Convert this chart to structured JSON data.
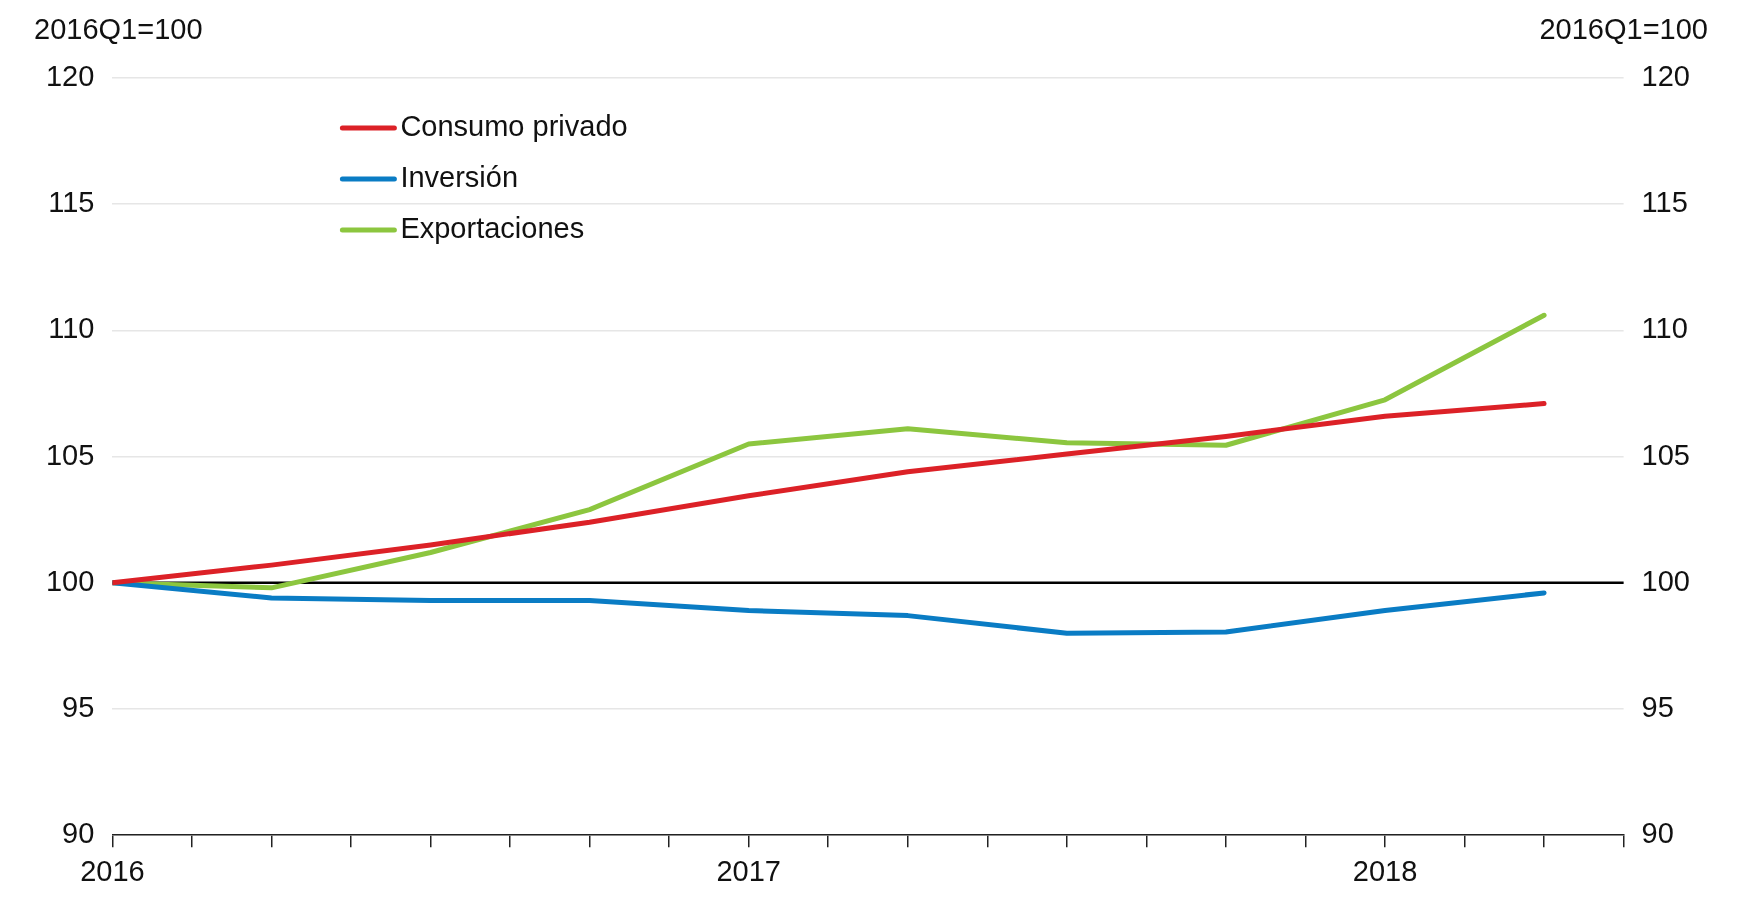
{
  "chart_data": {
    "type": "line",
    "ylabel": "2016Q1=100",
    "y2label": "2016Q1=100",
    "x": [
      2016,
      2016.25,
      2016.5,
      2016.75,
      2017,
      2017.25,
      2017.5,
      2017.75,
      2018,
      2018.25
    ],
    "series": [
      {
        "name": "Consumo privado",
        "color": "#dc2127",
        "values": [
          100,
          100.7,
          101.5,
          102.4,
          103.45,
          104.4,
          105.1,
          105.8,
          106.6,
          107.1
        ]
      },
      {
        "name": "Inversión",
        "color": "#0a7cc4",
        "values": [
          100,
          99.4,
          99.3,
          99.3,
          98.9,
          98.7,
          98.0,
          98.05,
          98.9,
          99.6
        ]
      },
      {
        "name": "Exportaciones",
        "color": "#8cc63f",
        "values": [
          100,
          99.8,
          101.2,
          102.9,
          105.5,
          106.1,
          105.55,
          105.45,
          107.25,
          110.6
        ]
      }
    ],
    "xlim": [
      2016,
      2018.375
    ],
    "xticks": [
      {
        "value": 2016,
        "label": "2016"
      },
      {
        "value": 2016.125,
        "label": null
      },
      {
        "value": 2016.25,
        "label": null
      },
      {
        "value": 2016.375,
        "label": null
      },
      {
        "value": 2016.5,
        "label": null
      },
      {
        "value": 2016.625,
        "label": null
      },
      {
        "value": 2016.75,
        "label": null
      },
      {
        "value": 2016.875,
        "label": null
      },
      {
        "value": 2017,
        "label": "2017"
      },
      {
        "value": 2017.125,
        "label": null
      },
      {
        "value": 2017.25,
        "label": null
      },
      {
        "value": 2017.375,
        "label": null
      },
      {
        "value": 2017.5,
        "label": null
      },
      {
        "value": 2017.625,
        "label": null
      },
      {
        "value": 2017.75,
        "label": null
      },
      {
        "value": 2017.875,
        "label": null
      },
      {
        "value": 2018,
        "label": "2018"
      },
      {
        "value": 2018.125,
        "label": null
      },
      {
        "value": 2018.25,
        "label": null
      },
      {
        "value": 2018.375,
        "label": null
      }
    ],
    "ylim": [
      90,
      120
    ],
    "yticks": [
      90,
      95,
      100,
      105,
      110,
      115,
      120
    ],
    "y2lim": [
      90,
      120
    ],
    "y2ticks": [
      90,
      95,
      100,
      105,
      110,
      115,
      120
    ],
    "ref_lines": [
      {
        "axis": "y",
        "value": 100,
        "color": "#000000"
      }
    ],
    "grid": "y",
    "legend": "top left",
    "marker": "none",
    "line_style": "solid"
  }
}
